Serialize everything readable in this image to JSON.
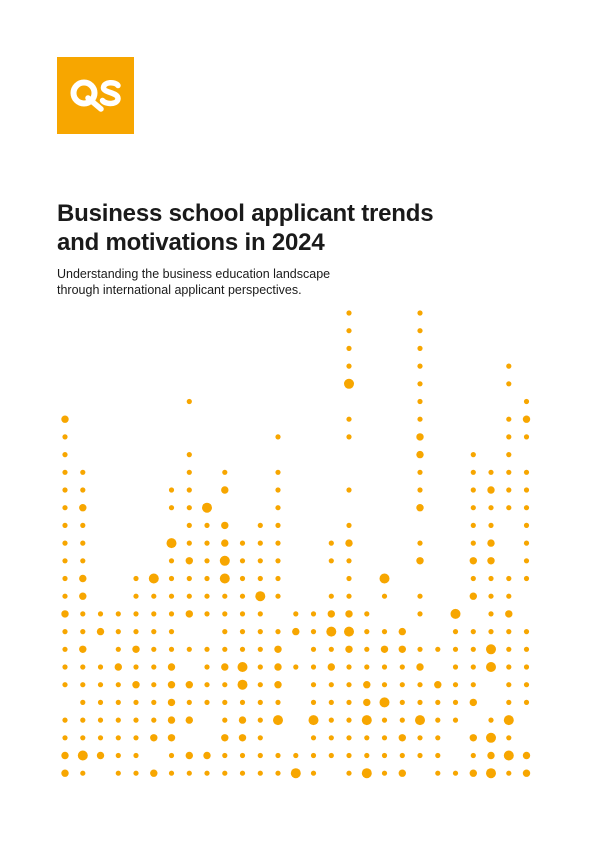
{
  "brand": {
    "logo_text": "QS",
    "accent_color": "#f7a600"
  },
  "cover": {
    "title_line1": "Business school applicant trends",
    "title_line2": "and motivations in 2024",
    "subtitle_line1": "Understanding the business education landscape",
    "subtitle_line2": "through international applicant perspectives."
  }
}
